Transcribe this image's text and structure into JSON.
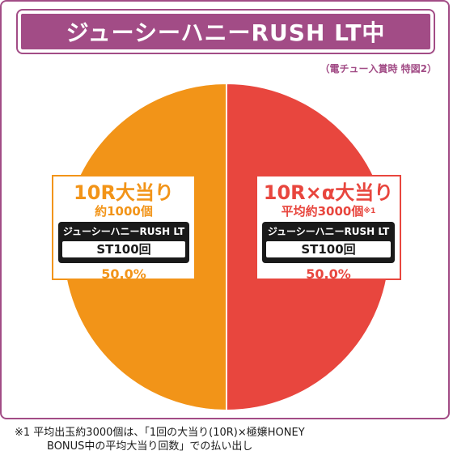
{
  "title": "ジューシーハニーRUSH LT中",
  "note_top": "（電チュー入賞時 特図2）",
  "colors": {
    "frame": "#a24c86",
    "left": "#f29418",
    "right": "#e8463e"
  },
  "chart_data": {
    "type": "pie",
    "title": "ジューシーハニーRUSH LT中",
    "slices": [
      {
        "label": "10R大当り",
        "value": 50.0,
        "color": "#f29418"
      },
      {
        "label": "10R×α大当り",
        "value": 50.0,
        "color": "#e8463e"
      }
    ]
  },
  "left_box": {
    "main": "10R大当り",
    "sub": "約1000個",
    "mode": "ジューシーハニーRUSH LT",
    "st": "ST100回",
    "pct": "50.0%"
  },
  "right_box": {
    "main": "10R×α大当り",
    "sub": "平均約3000個",
    "sub_mark": "※1",
    "mode": "ジューシーハニーRUSH LT",
    "st": "ST100回",
    "pct": "50.0%"
  },
  "footnote": {
    "line1": "※1  平均出玉約3000個は、「1回の大当り(10R)×極嬢HONEY",
    "line2": "BONUS中の平均大当り回数」での払い出し"
  }
}
